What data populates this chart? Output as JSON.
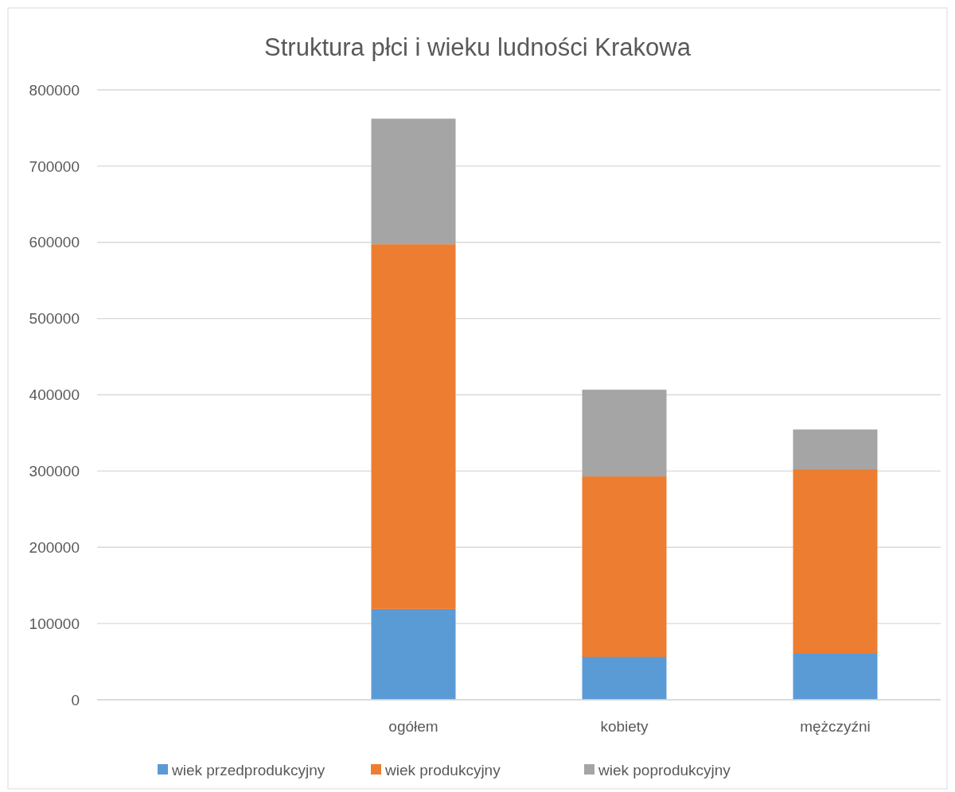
{
  "chart_data": {
    "type": "bar",
    "title": "Struktura płci i wieku ludności Krakowa",
    "categories": [
      null,
      "ogółem",
      "kobiety",
      "mężczyźni"
    ],
    "stacked": true,
    "series": [
      {
        "name": "wiek przedprodukcyjny",
        "color": "#5b9bd5",
        "values": [
          null,
          119000,
          56300,
          60500
        ]
      },
      {
        "name": "wiek produkcyjny",
        "color": "#ed7d31",
        "values": [
          null,
          478500,
          236700,
          241900
        ]
      },
      {
        "name": "wiek poprodukcyjny",
        "color": "#a5a5a5",
        "values": [
          null,
          164700,
          113700,
          52100
        ]
      }
    ],
    "ylim": [
      0,
      800000
    ],
    "yticks": [
      0,
      100000,
      200000,
      300000,
      400000,
      500000,
      600000,
      700000,
      800000
    ],
    "grid": "y",
    "legend": "bottom"
  }
}
